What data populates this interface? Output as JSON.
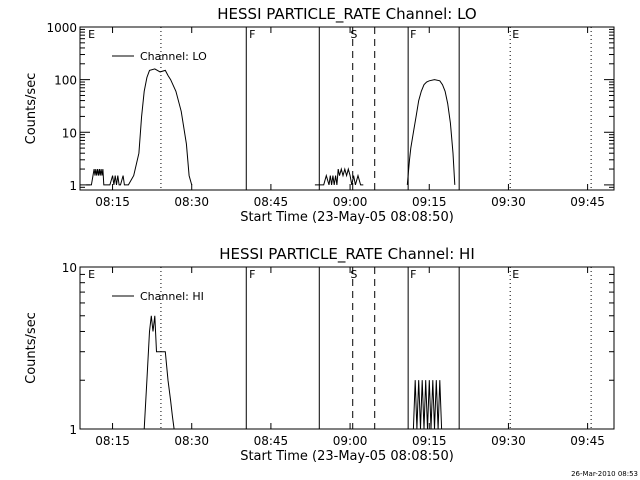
{
  "footer": {
    "timestamp": "26-Mar-2010 08:53"
  },
  "chart_data": [
    {
      "type": "line",
      "title": "HESSI PARTICLE_RATE Channel: LO",
      "xlabel": "Start Time (23-May-05 08:08:50)",
      "ylabel": "Counts/sec",
      "yscale": "log",
      "xlim": [
        "08:08:50",
        "09:50:00"
      ],
      "ylim": [
        0.8,
        1000
      ],
      "x_ticks": [
        "08:15",
        "08:30",
        "08:45",
        "09:00",
        "09:15",
        "09:30",
        "09:45"
      ],
      "y_ticks": [
        "1",
        "10",
        "100",
        "1000"
      ],
      "legend": {
        "position": "top-left",
        "entries": [
          "Channel: LO"
        ]
      },
      "series": [
        {
          "name": "Channel: LO",
          "segments": [
            {
              "x": [
                "08:10:00",
                "08:11:00",
                "08:11:30",
                "08:11:40",
                "08:11:50",
                "08:12:00",
                "08:12:10",
                "08:12:20",
                "08:12:30",
                "08:12:40",
                "08:12:50",
                "08:13:00",
                "08:13:10",
                "08:13:20",
                "08:13:30",
                "08:14:00",
                "08:14:30",
                "08:15:00",
                "08:15:15",
                "08:15:30",
                "08:15:45",
                "08:16:00",
                "08:16:15",
                "08:16:30",
                "08:17:00",
                "08:17:15",
                "08:17:30",
                "08:18:00",
                "08:19:00",
                "08:20:00",
                "08:20:30",
                "08:21:00",
                "08:21:30",
                "08:22:00",
                "08:23:00",
                "08:24:00",
                "08:25:00",
                "08:25:30",
                "08:26:00",
                "08:27:00",
                "08:28:00",
                "08:29:00",
                "08:29:30",
                "08:30:00"
              ],
              "y": [
                1,
                1,
                2,
                1.5,
                2,
                1.5,
                2,
                1.5,
                2,
                1.5,
                2,
                1.5,
                2,
                1,
                1,
                1,
                1,
                1.5,
                1,
                1.5,
                1,
                1.5,
                1,
                1,
                1.5,
                1,
                1,
                1,
                1.5,
                4,
                20,
                60,
                110,
                150,
                160,
                140,
                150,
                120,
                100,
                60,
                25,
                6,
                1.5,
                1
              ]
            },
            {
              "x": [
                "08:53:20",
                "08:54:00",
                "08:55:00",
                "08:55:30",
                "08:56:00",
                "08:56:15",
                "08:56:30",
                "08:56:45",
                "08:57:00",
                "08:57:15",
                "08:57:30",
                "08:57:45",
                "08:58:00",
                "08:58:20",
                "08:58:40",
                "08:59:00",
                "08:59:20",
                "08:59:40",
                "09:00:00",
                "09:00:20",
                "09:00:40",
                "09:01:00",
                "09:01:30",
                "09:02:00",
                "09:02:30"
              ],
              "y": [
                1,
                1,
                1,
                1.5,
                1,
                1.5,
                1,
                1.5,
                1,
                1.5,
                1,
                2,
                1.5,
                2,
                1.5,
                2,
                1.5,
                2,
                1.5,
                1,
                1.5,
                1,
                1.5,
                1,
                1
              ]
            },
            {
              "x": [
                "09:10:50",
                "09:11:00",
                "09:11:15",
                "09:11:30",
                "09:12:00",
                "09:12:30",
                "09:13:00",
                "09:13:30",
                "09:14:00",
                "09:14:30",
                "09:15:00",
                "09:16:00",
                "09:17:00",
                "09:17:30",
                "09:18:00",
                "09:18:30",
                "09:19:00",
                "09:19:30",
                "09:19:50"
              ],
              "y": [
                1,
                1.5,
                3,
                5,
                10,
                20,
                40,
                60,
                80,
                90,
                95,
                100,
                95,
                80,
                60,
                35,
                15,
                4,
                1
              ]
            }
          ]
        }
      ],
      "solid_lines": [
        "08:40:20",
        "08:54:10",
        "09:11:00",
        "09:20:40"
      ],
      "dashed_lines": [
        "09:00:30",
        "09:04:40"
      ],
      "dotted_lines": [
        "08:24:10",
        "09:30:20",
        "09:45:40"
      ],
      "markers": [
        {
          "label": "E",
          "x": "08:10:00"
        },
        {
          "label": "F",
          "x": "08:40:30"
        },
        {
          "label": "S",
          "x": "08:59:40"
        },
        {
          "label": "F",
          "x": "09:11:00"
        },
        {
          "label": "E",
          "x": "09:30:20"
        }
      ]
    },
    {
      "type": "line",
      "title": "HESSI PARTICLE_RATE Channel: HI",
      "xlabel": "Start Time (23-May-05 08:08:50)",
      "ylabel": "Counts/sec",
      "yscale": "log",
      "xlim": [
        "08:08:50",
        "09:50:00"
      ],
      "ylim": [
        1,
        10
      ],
      "x_ticks": [
        "08:15",
        "08:30",
        "08:45",
        "09:00",
        "09:15",
        "09:30",
        "09:45"
      ],
      "y_ticks": [
        "1",
        "10"
      ],
      "legend": {
        "position": "top-left",
        "entries": [
          "Channel: HI"
        ]
      },
      "series": [
        {
          "name": "Channel: HI",
          "segments": [
            {
              "x": [
                "08:21:00",
                "08:21:30",
                "08:22:00",
                "08:22:20",
                "08:22:40",
                "08:23:00",
                "08:23:20",
                "08:23:40",
                "08:24:00",
                "08:24:30",
                "08:25:00",
                "08:25:30",
                "08:26:00",
                "08:26:20",
                "08:26:40"
              ],
              "y": [
                1,
                2,
                4,
                5,
                4,
                5,
                3,
                3,
                3,
                3,
                3,
                2,
                1.5,
                1.2,
                1
              ]
            },
            {
              "x": [
                "09:11:00",
                "09:12:00",
                "09:12:20",
                "09:12:40",
                "09:13:00",
                "09:13:20",
                "09:13:40",
                "09:14:00",
                "09:14:20",
                "09:14:40",
                "09:15:00",
                "09:15:20",
                "09:15:40",
                "09:16:00",
                "09:16:20",
                "09:16:40",
                "09:17:00",
                "09:17:20",
                "09:17:40",
                "09:18:00",
                "09:19:00"
              ],
              "y": [
                1,
                1,
                2,
                1,
                2,
                1,
                2,
                1,
                2,
                1,
                2,
                1,
                2,
                1,
                2,
                1,
                2,
                1,
                1,
                1,
                1
              ]
            }
          ]
        }
      ],
      "solid_lines": [
        "08:40:20",
        "08:54:10",
        "09:11:00",
        "09:20:40"
      ],
      "dashed_lines": [
        "09:00:30",
        "09:04:40"
      ],
      "dotted_lines": [
        "08:24:10",
        "09:30:20",
        "09:45:40"
      ],
      "markers": [
        {
          "label": "E",
          "x": "08:10:00"
        },
        {
          "label": "F",
          "x": "08:40:30"
        },
        {
          "label": "S",
          "x": "08:59:40"
        },
        {
          "label": "F",
          "x": "09:11:00"
        },
        {
          "label": "E",
          "x": "09:30:20"
        }
      ]
    }
  ]
}
